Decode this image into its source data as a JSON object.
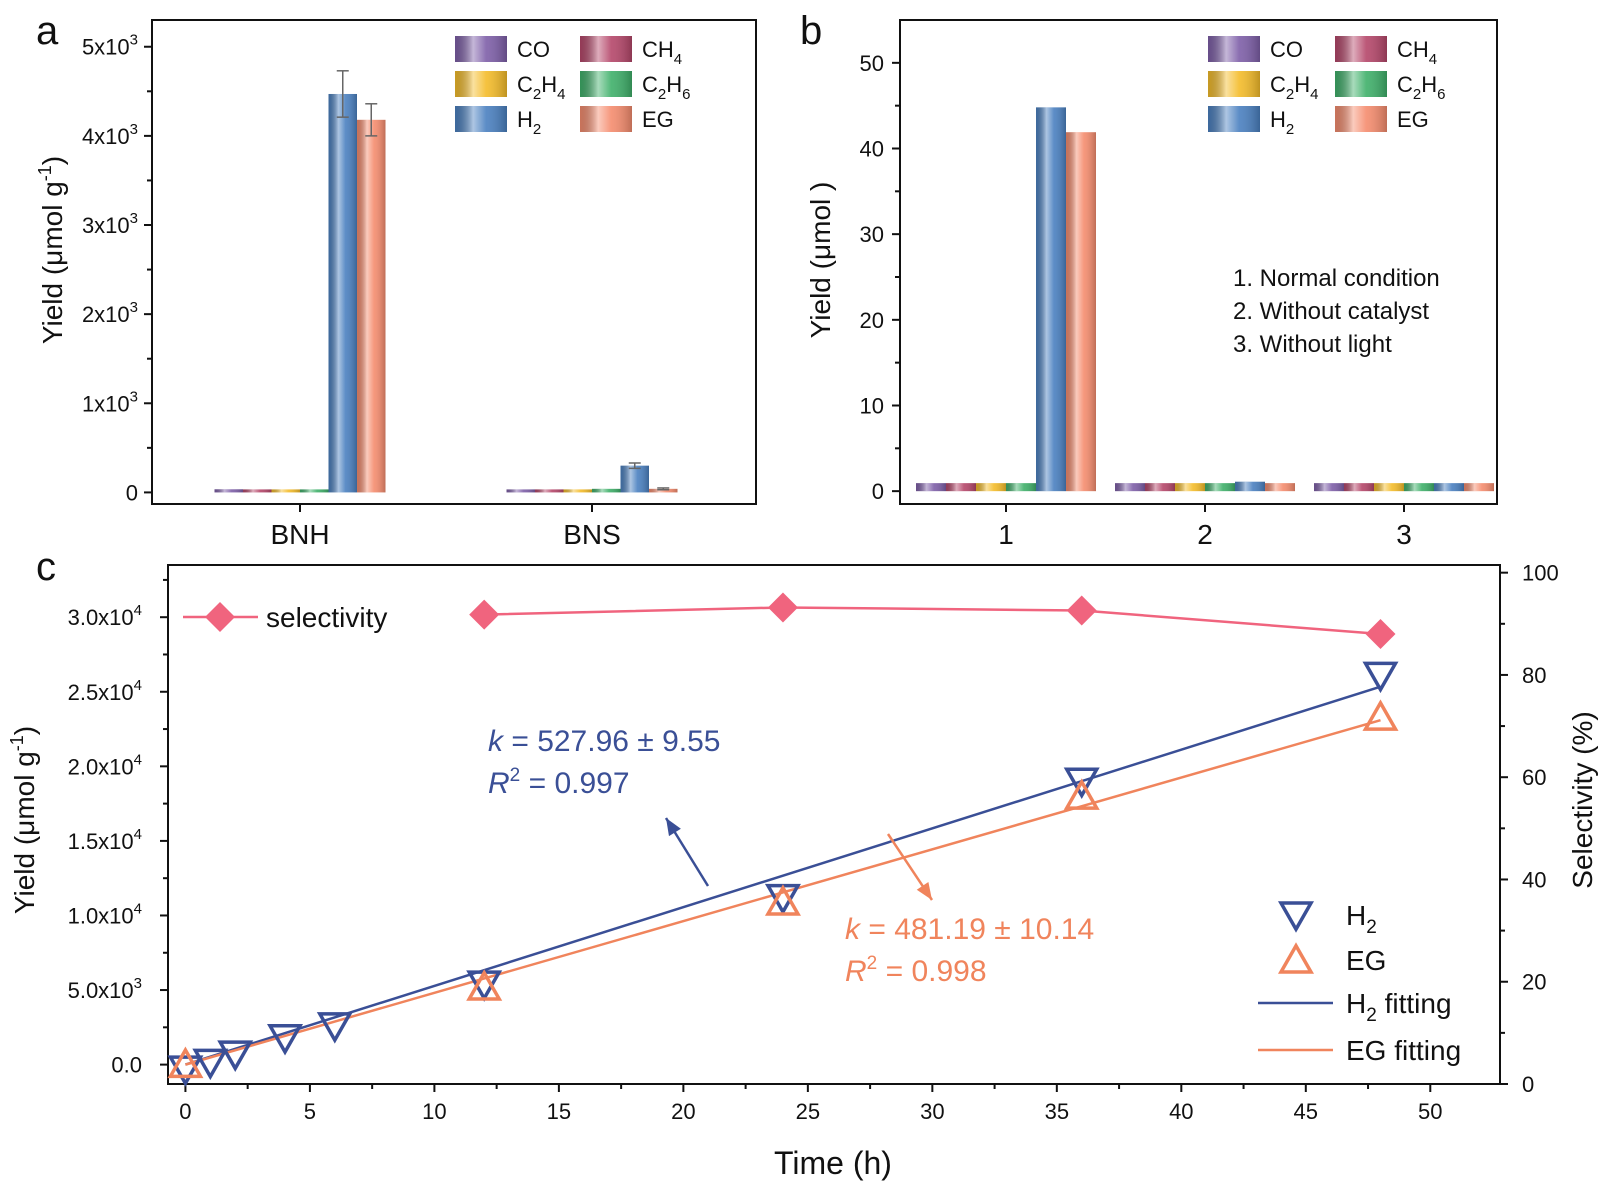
{
  "colors": {
    "CO": "#7e5fa8",
    "CH4": "#b5476a",
    "C2H4": "#f4bc2a",
    "C2H6": "#3fb06a",
    "H2": "#4a80c0",
    "EG": "#f58c6e",
    "selectivity": "#f0647e",
    "h2_fit": "#3a4f96",
    "eg_fit": "#f0845c"
  },
  "chart_data": [
    {
      "panel": "a",
      "type": "bar",
      "ylabel_prefix": "Yield (",
      "ylabel_mu": "μ",
      "ylabel_unit": "mol g",
      "ylabel_exp": "-1",
      "ylabel_suffix": ")",
      "ylim": [
        -130,
        5300
      ],
      "yticks": [
        {
          "value": 0,
          "mant": "0",
          "exp": ""
        },
        {
          "value": 1000,
          "mant": "1x10",
          "exp": "3"
        },
        {
          "value": 2000,
          "mant": "2x10",
          "exp": "3"
        },
        {
          "value": 3000,
          "mant": "3x10",
          "exp": "3"
        },
        {
          "value": 4000,
          "mant": "4x10",
          "exp": "3"
        },
        {
          "value": 5000,
          "mant": "5x10",
          "exp": "3"
        }
      ],
      "categories": [
        "BNH",
        "BNS"
      ],
      "series": [
        {
          "name": "CO",
          "key": "CO",
          "values": [
            35,
            25
          ],
          "errors": [
            0,
            0
          ]
        },
        {
          "name": "CH4",
          "key": "CH4",
          "values": [
            25,
            20
          ],
          "errors": [
            0,
            0
          ]
        },
        {
          "name": "C2H4",
          "key": "C2H4",
          "values": [
            10,
            8
          ],
          "errors": [
            0,
            0
          ]
        },
        {
          "name": "C2H6",
          "key": "C2H6",
          "values": [
            20,
            40
          ],
          "errors": [
            0,
            0
          ]
        },
        {
          "name": "H2",
          "key": "H2",
          "values": [
            4470,
            300
          ],
          "errors": [
            260,
            30
          ]
        },
        {
          "name": "EG",
          "key": "EG",
          "values": [
            4180,
            40
          ],
          "errors": [
            180,
            10
          ]
        }
      ],
      "legend": [
        {
          "key": "CO",
          "base": "CO",
          "sub": "",
          "rest": "",
          "sub2": ""
        },
        {
          "key": "CH4",
          "base": "CH",
          "sub": "4",
          "rest": "",
          "sub2": ""
        },
        {
          "key": "C2H4",
          "base": "C",
          "sub": "2",
          "rest": "H",
          "sub2": "4"
        },
        {
          "key": "C2H6",
          "base": "C",
          "sub": "2",
          "rest": "H",
          "sub2": "6"
        },
        {
          "key": "H2",
          "base": "H",
          "sub": "2",
          "rest": "",
          "sub2": ""
        },
        {
          "key": "EG",
          "base": "EG",
          "sub": "",
          "rest": "",
          "sub2": ""
        }
      ]
    },
    {
      "panel": "b",
      "type": "bar",
      "ylabel": "Yield (μmol )",
      "ylim": [
        -1.5,
        55
      ],
      "yticks": [
        0,
        10,
        20,
        30,
        40,
        50
      ],
      "categories": [
        "1",
        "2",
        "3"
      ],
      "series": [
        {
          "name": "CO",
          "key": "CO",
          "values": [
            0.3,
            0.2,
            0.1
          ]
        },
        {
          "name": "CH4",
          "key": "CH4",
          "values": [
            0.3,
            0.2,
            0.1
          ]
        },
        {
          "name": "C2H4",
          "key": "C2H4",
          "values": [
            0.1,
            0.1,
            0.1
          ]
        },
        {
          "name": "C2H6",
          "key": "C2H6",
          "values": [
            0.2,
            0.1,
            0.1
          ]
        },
        {
          "name": "H2",
          "key": "H2",
          "values": [
            44.8,
            1.1,
            0.1
          ]
        },
        {
          "name": "EG",
          "key": "EG",
          "values": [
            41.9,
            0.1,
            0.1
          ]
        }
      ],
      "annotations": [
        "1. Normal condition",
        "2. Without catalyst",
        "3. Without light"
      ]
    },
    {
      "panel": "c",
      "type": "scatter",
      "xlabel": "Time (h)",
      "ylabel_prefix": "Yield (",
      "ylabel_mu": "μ",
      "ylabel_unit": "mol g",
      "ylabel_exp": "-1",
      "ylabel_suffix": ")",
      "y2label": "Selectivity (%)",
      "xlim": [
        -0.7,
        52.8
      ],
      "ylim": [
        -1300,
        33500
      ],
      "y2lim": [
        0,
        101.5
      ],
      "xticks": [
        0,
        5,
        10,
        15,
        20,
        25,
        30,
        35,
        40,
        45,
        50
      ],
      "yticks": [
        {
          "value": 0,
          "mant": "0.0",
          "exp": ""
        },
        {
          "value": 5000,
          "mant": "5.0x10",
          "exp": "3"
        },
        {
          "value": 10000,
          "mant": "1.0x10",
          "exp": "4"
        },
        {
          "value": 15000,
          "mant": "1.5x10",
          "exp": "4"
        },
        {
          "value": 20000,
          "mant": "2.0x10",
          "exp": "4"
        },
        {
          "value": 25000,
          "mant": "2.5x10",
          "exp": "4"
        },
        {
          "value": 30000,
          "mant": "3.0x10",
          "exp": "4"
        }
      ],
      "y2ticks": [
        0,
        20,
        40,
        60,
        80,
        100
      ],
      "h2": {
        "x": [
          0,
          1,
          2,
          4,
          6,
          12,
          24,
          36,
          48
        ],
        "y": [
          -300,
          150,
          700,
          1800,
          2600,
          5400,
          11200,
          19000,
          26100
        ]
      },
      "eg": {
        "x": [
          0,
          12,
          24,
          36,
          48
        ],
        "y": [
          20,
          5200,
          10900,
          18000,
          23300
        ]
      },
      "h2_fit": {
        "x": [
          0,
          48
        ],
        "y": [
          0,
          25342
        ]
      },
      "eg_fit": {
        "x": [
          0,
          48
        ],
        "y": [
          0,
          23097
        ]
      },
      "selectivity": {
        "x": [
          12,
          24,
          36,
          48
        ],
        "y": [
          91.8,
          93.2,
          92.6,
          88
        ]
      },
      "legend_selectivity": "selectivity",
      "legend": [
        {
          "key": "h2",
          "base": "H",
          "sub": "2",
          "rest": ""
        },
        {
          "key": "eg",
          "base": "EG",
          "sub": "",
          "rest": ""
        },
        {
          "key": "h2fit",
          "base": "H",
          "sub": "2",
          "rest": " fitting"
        },
        {
          "key": "egfit",
          "base": "EG fitting",
          "sub": "",
          "rest": ""
        }
      ],
      "h2_label": {
        "k": "k",
        "k_rest": " = 527.96 ± 9.55",
        "r": "R",
        "r_sup": "2",
        "r_rest": " = 0.997"
      },
      "eg_label": {
        "k": "k",
        "k_rest": " = 481.19 ± 10.14",
        "r": "R",
        "r_sup": "2",
        "r_rest": " = 0.998"
      }
    }
  ],
  "panel_labels": [
    "a",
    "b",
    "c"
  ]
}
